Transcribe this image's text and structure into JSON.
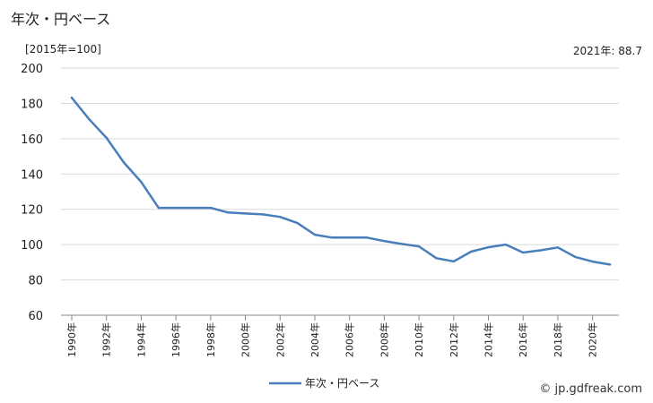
{
  "header": {
    "title": "年次・円ベース",
    "unit": "[2015年=100]",
    "latest_note": "2021年: 88.7"
  },
  "footer": {
    "credit": "© jp.gdfreak.com"
  },
  "colors": {
    "line": "#4a7ebb",
    "grid": "#d9d9d9",
    "axis": "#888888"
  },
  "chart_data": {
    "type": "line",
    "title": "",
    "xlabel": "",
    "ylabel": "",
    "ylim": [
      60,
      200
    ],
    "yticks": [
      60,
      80,
      100,
      120,
      140,
      160,
      180,
      200
    ],
    "grid": "horizontal",
    "legend_position": "bottom",
    "x": [
      1990,
      1991,
      1992,
      1993,
      1994,
      1995,
      1996,
      1997,
      1998,
      1999,
      2000,
      2001,
      2002,
      2003,
      2004,
      2005,
      2006,
      2007,
      2008,
      2009,
      2010,
      2011,
      2012,
      2013,
      2014,
      2015,
      2016,
      2017,
      2018,
      2019,
      2020,
      2021
    ],
    "xtick_labels": [
      "1990年",
      "1992年",
      "1994年",
      "1996年",
      "1998年",
      "2000年",
      "2002年",
      "2004年",
      "2006年",
      "2008年",
      "2010年",
      "2012年",
      "2014年",
      "2016年",
      "2018年",
      "2020年"
    ],
    "series": [
      {
        "name": "年次・円ベース",
        "values": [
          183.2,
          171.0,
          160.5,
          146.5,
          135.5,
          120.8,
          120.8,
          120.8,
          120.8,
          118.2,
          117.6,
          117.1,
          115.7,
          112.2,
          105.6,
          104.0,
          104.0,
          104.0,
          102.0,
          100.4,
          99.0,
          92.3,
          90.5,
          96.0,
          98.5,
          100.0,
          95.5,
          96.8,
          98.4,
          93.0,
          90.4,
          88.7
        ]
      }
    ]
  }
}
